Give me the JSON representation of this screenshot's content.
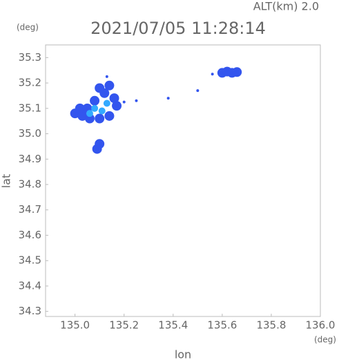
{
  "chart_data": {
    "type": "scatter",
    "title": "2021/07/05 11:28:14",
    "subtitle": "ALT(km) 2.0",
    "x_label": "lon",
    "y_label": "lat",
    "x_unit": "(deg)",
    "y_unit": "(deg)",
    "xlim": [
      134.88,
      136.0
    ],
    "ylim": [
      34.28,
      35.35
    ],
    "xticks": [
      {
        "value": 135,
        "label": "135.0"
      },
      135.2,
      135.4,
      135.6,
      135.8,
      {
        "value": 136,
        "label": "136.0"
      }
    ],
    "yticks": [
      {
        "value": 34.3,
        "label": "34.3"
      },
      34.4,
      34.5,
      34.6,
      34.7,
      34.8,
      34.9,
      {
        "value": 35,
        "label": "35.0"
      },
      35.1,
      35.2,
      35.3
    ],
    "grid": false,
    "series": [
      {
        "color": "#3355ee",
        "x": [
          135.0,
          135.03,
          135.06,
          135.1,
          135.14,
          135.05,
          135.08,
          135.12,
          135.14,
          135.16,
          135.17,
          135.02,
          135.1,
          135.1,
          135.09,
          135.6,
          135.62,
          135.64,
          135.66
        ],
        "values": [
          35.08,
          35.07,
          35.06,
          35.06,
          35.07,
          35.1,
          35.13,
          35.16,
          35.19,
          35.14,
          35.11,
          35.1,
          35.18,
          34.96,
          34.94,
          35.24,
          35.245,
          35.24,
          35.243
        ]
      },
      {
        "color": "#33aaff",
        "x": [
          135.08,
          135.11,
          135.13,
          135.06
        ],
        "values": [
          35.1,
          35.09,
          35.12,
          35.08
        ]
      },
      {
        "color": "#3355ee",
        "x": [
          135.5,
          135.38,
          135.2,
          135.25,
          135.13,
          135.56
        ],
        "values": [
          35.17,
          35.14,
          35.125,
          35.13,
          35.225,
          35.235
        ]
      }
    ]
  }
}
